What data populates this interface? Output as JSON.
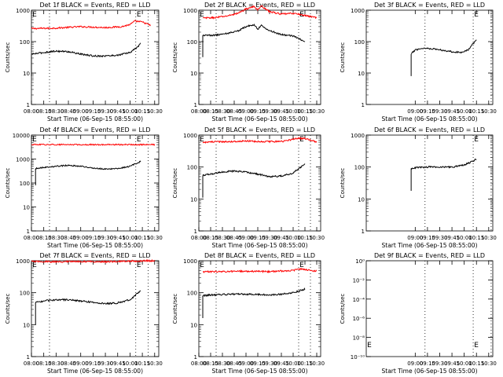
{
  "colors": {
    "events": "#000000",
    "lld": "#ff0000",
    "axes": "#000000",
    "background": "#ffffff"
  },
  "chart_data": [
    {
      "type": "line",
      "title": "Det 1f BLACK = Events, RED = LLD",
      "xlabel": "Start Time (06-Sep-15 08:55:00)",
      "ylabel": "Counts/sec",
      "xlim": [
        "08:00",
        "10:35"
      ],
      "ylim": [
        1,
        1000
      ],
      "yscale": "log",
      "x_tick_labels": [
        "08:00",
        "08:15",
        "08:30",
        "08:45",
        "09:00",
        "09:15",
        "09:30",
        "09:45",
        "10:00",
        "10:15",
        "10:30"
      ],
      "y_tick_labels": [
        "1",
        "10",
        "100",
        "1000"
      ],
      "markers": [
        "E",
        "E"
      ],
      "vlines_x": [
        "08:22",
        "10:07",
        "10:22"
      ],
      "grid": false,
      "series": [
        {
          "color": "red",
          "x": [
            "08:00",
            "08:30",
            "09:00",
            "09:30",
            "09:50",
            "10:00",
            "10:06",
            "10:15",
            "10:25"
          ],
          "y": [
            260,
            270,
            300,
            280,
            300,
            350,
            450,
            420,
            330
          ]
        },
        {
          "color": "black",
          "x": [
            "08:00",
            "08:15",
            "08:30",
            "08:45",
            "09:00",
            "09:15",
            "09:30",
            "09:45",
            "10:00",
            "10:10",
            "10:13"
          ],
          "y": [
            40,
            45,
            50,
            48,
            40,
            35,
            35,
            37,
            45,
            70,
            90
          ]
        }
      ]
    },
    {
      "type": "line",
      "title": "Det 2f BLACK = Events, RED = LLD",
      "xlabel": "Start Time (06-Sep-15 08:55:00)",
      "ylabel": "Counts/sec",
      "xlim": [
        "08:00",
        "10:35"
      ],
      "ylim": [
        1,
        1000
      ],
      "yscale": "log",
      "x_tick_labels": [
        "08:00",
        "08:15",
        "08:30",
        "08:45",
        "09:00",
        "09:15",
        "09:30",
        "09:45",
        "10:00",
        "10:15",
        "10:30"
      ],
      "y_tick_labels": [
        "1",
        "10",
        "100",
        "1000"
      ],
      "markers": [
        "E",
        "E"
      ],
      "vlines_x": [
        "08:22",
        "10:07",
        "10:22"
      ],
      "grid": false,
      "series": [
        {
          "color": "red",
          "x": [
            "08:05",
            "08:20",
            "08:35",
            "08:50",
            "09:00",
            "09:10",
            "09:15",
            "09:20",
            "09:30",
            "09:45",
            "10:00",
            "10:30"
          ],
          "y": [
            560,
            580,
            650,
            800,
            1100,
            1300,
            1050,
            1350,
            900,
            750,
            800,
            580
          ]
        },
        {
          "color": "black",
          "x": [
            "08:05",
            "08:20",
            "08:35",
            "08:50",
            "09:00",
            "09:10",
            "09:15",
            "09:20",
            "09:30",
            "09:45",
            "10:00",
            "10:15"
          ],
          "y": [
            160,
            160,
            180,
            220,
            300,
            350,
            250,
            330,
            220,
            170,
            150,
            100
          ]
        }
      ]
    },
    {
      "type": "line",
      "title": "Det 3f BLACK = Events, RED = LLD",
      "xlabel": "Start Time (06-Sep-15 08:55:00)",
      "ylabel": "Counts/sec",
      "xlim": [
        "08:00",
        "10:35"
      ],
      "ylim": [
        1,
        1000
      ],
      "yscale": "log",
      "x_tick_labels": [
        "09:00",
        "09:15",
        "09:30",
        "09:45",
        "10:00",
        "10:15",
        "10:30"
      ],
      "y_tick_labels": [
        "1",
        "10",
        "100",
        "1000"
      ],
      "markers": [
        "E"
      ],
      "vlines_x": [
        "09:12",
        "10:11",
        "10:33"
      ],
      "grid": false,
      "series": [
        {
          "color": "black",
          "x": [
            "08:55",
            "09:00",
            "09:10",
            "09:20",
            "09:30",
            "09:45",
            "09:55",
            "10:05",
            "10:13",
            "10:15"
          ],
          "y": [
            40,
            55,
            62,
            60,
            55,
            48,
            45,
            55,
            100,
            120
          ]
        }
      ]
    },
    {
      "type": "line",
      "title": "Det 4f BLACK = Events, RED = LLD",
      "xlabel": "Start Time (06-Sep-15 08:55:00)",
      "ylabel": "Counts/sec",
      "xlim": [
        "08:00",
        "10:35"
      ],
      "ylim": [
        1,
        10000
      ],
      "yscale": "log",
      "x_tick_labels": [
        "08:00",
        "08:15",
        "08:30",
        "08:45",
        "09:00",
        "09:15",
        "09:30",
        "09:45",
        "10:00",
        "10:15",
        "10:30"
      ],
      "y_tick_labels": [
        "1",
        "10",
        "100",
        "1000",
        "10000"
      ],
      "markers": [
        "E",
        "E"
      ],
      "vlines_x": [
        "08:22",
        "10:07",
        "10:22"
      ],
      "grid": false,
      "series": [
        {
          "color": "red",
          "x": [
            "08:00",
            "10:30"
          ],
          "y": [
            4000,
            4000
          ]
        },
        {
          "color": "black",
          "x": [
            "08:05",
            "08:15",
            "08:30",
            "08:45",
            "09:00",
            "09:15",
            "09:30",
            "09:45",
            "10:00",
            "10:10",
            "10:13"
          ],
          "y": [
            400,
            450,
            500,
            550,
            500,
            420,
            380,
            400,
            500,
            700,
            800
          ]
        }
      ]
    },
    {
      "type": "line",
      "title": "Det 5f BLACK = Events, RED = LLD",
      "xlabel": "Start Time (06-Sep-15 08:55:00)",
      "ylabel": "Counts/sec",
      "xlim": [
        "08:00",
        "10:35"
      ],
      "ylim": [
        1,
        1000
      ],
      "yscale": "log",
      "x_tick_labels": [
        "08:00",
        "08:15",
        "08:30",
        "08:45",
        "09:00",
        "09:15",
        "09:30",
        "09:45",
        "10:00",
        "10:15",
        "10:30"
      ],
      "y_tick_labels": [
        "1",
        "10",
        "100",
        "1000"
      ],
      "markers": [
        "E",
        "E"
      ],
      "vlines_x": [
        "08:22",
        "10:07",
        "10:22"
      ],
      "grid": false,
      "series": [
        {
          "color": "red",
          "x": [
            "08:05",
            "08:30",
            "09:00",
            "09:30",
            "09:50",
            "10:05",
            "10:15",
            "10:30"
          ],
          "y": [
            600,
            620,
            650,
            620,
            650,
            800,
            780,
            600
          ]
        },
        {
          "color": "black",
          "x": [
            "08:05",
            "08:15",
            "08:30",
            "08:45",
            "09:00",
            "09:15",
            "09:30",
            "09:45",
            "10:00",
            "10:10",
            "10:15"
          ],
          "y": [
            55,
            60,
            70,
            75,
            70,
            60,
            50,
            52,
            65,
            100,
            130
          ]
        }
      ]
    },
    {
      "type": "line",
      "title": "Det 6f BLACK = Events, RED = LLD",
      "xlabel": "Start Time (06-Sep-15 08:55:00)",
      "ylabel": "Counts/sec",
      "xlim": [
        "08:00",
        "10:35"
      ],
      "ylim": [
        1,
        1000
      ],
      "yscale": "log",
      "x_tick_labels": [
        "09:00",
        "09:15",
        "09:30",
        "09:45",
        "10:00",
        "10:15",
        "10:30"
      ],
      "y_tick_labels": [
        "1",
        "10",
        "100",
        "1000"
      ],
      "markers": [
        "E"
      ],
      "vlines_x": [
        "09:12",
        "10:11",
        "10:33"
      ],
      "grid": false,
      "series": [
        {
          "color": "black",
          "x": [
            "08:55",
            "09:00",
            "09:15",
            "09:30",
            "09:45",
            "10:00",
            "10:10",
            "10:15"
          ],
          "y": [
            90,
            95,
            100,
            100,
            100,
            115,
            150,
            180
          ]
        }
      ]
    },
    {
      "type": "line",
      "title": "Det 7f BLACK = Events, RED = LLD",
      "xlabel": "Start Time (06-Sep-15 08:55:00)",
      "ylabel": "Counts/sec",
      "xlim": [
        "08:00",
        "10:35"
      ],
      "ylim": [
        1,
        1000
      ],
      "yscale": "log",
      "x_tick_labels": [
        "08:00",
        "08:15",
        "08:30",
        "08:45",
        "09:00",
        "09:15",
        "09:30",
        "09:45",
        "10:00",
        "10:15",
        "10:30"
      ],
      "y_tick_labels": [
        "1",
        "10",
        "100",
        "1000"
      ],
      "markers": [
        "E",
        "E"
      ],
      "vlines_x": [
        "08:22",
        "10:07",
        "10:22"
      ],
      "grid": false,
      "series": [
        {
          "color": "red",
          "x": [
            "08:00",
            "08:30",
            "09:00",
            "09:30",
            "10:00",
            "10:30"
          ],
          "y": [
            950,
            930,
            950,
            930,
            980,
            1000
          ]
        },
        {
          "color": "black",
          "x": [
            "08:05",
            "08:15",
            "08:30",
            "08:45",
            "09:00",
            "09:15",
            "09:30",
            "09:45",
            "10:00",
            "10:10",
            "10:13"
          ],
          "y": [
            50,
            55,
            60,
            60,
            55,
            50,
            45,
            48,
            60,
            100,
            110
          ]
        }
      ]
    },
    {
      "type": "line",
      "title": "Det 8f BLACK = Events, RED = LLD",
      "xlabel": "Start Time (06-Sep-15 08:55:00)",
      "ylabel": "Counts/sec",
      "xlim": [
        "08:00",
        "10:35"
      ],
      "ylim": [
        1,
        1000
      ],
      "yscale": "log",
      "x_tick_labels": [
        "08:00",
        "08:15",
        "08:30",
        "08:45",
        "09:00",
        "09:15",
        "09:30",
        "09:45",
        "10:00",
        "10:15",
        "10:30"
      ],
      "y_tick_labels": [
        "1",
        "10",
        "100",
        "1000"
      ],
      "markers": [
        "E",
        "E"
      ],
      "vlines_x": [
        "08:22",
        "10:07",
        "10:22"
      ],
      "grid": false,
      "series": [
        {
          "color": "red",
          "x": [
            "08:05",
            "08:30",
            "09:00",
            "09:30",
            "10:00",
            "10:10",
            "10:30"
          ],
          "y": [
            450,
            460,
            470,
            460,
            500,
            550,
            470
          ]
        },
        {
          "color": "black",
          "x": [
            "08:05",
            "08:15",
            "08:30",
            "08:45",
            "09:00",
            "09:15",
            "09:30",
            "09:45",
            "10:00",
            "10:10",
            "10:15"
          ],
          "y": [
            80,
            85,
            88,
            90,
            90,
            88,
            85,
            90,
            100,
            120,
            130
          ]
        }
      ]
    },
    {
      "type": "line",
      "title": "Det 9f BLACK = Events, RED = LLD",
      "xlabel": "Start Time (06-Sep-15 08:55:00)",
      "ylabel": "Counts/sec",
      "xlim": [
        "08:00",
        "10:35"
      ],
      "ylim": [
        1,
        1e-10
      ],
      "yscale": "log",
      "x_tick_labels": [
        "09:00",
        "09:15",
        "09:30",
        "09:45",
        "10:00",
        "10:15",
        "10:30"
      ],
      "y_tick_labels": [
        "10⁰",
        "10⁻²",
        "10⁻⁴",
        "10⁻⁶",
        "10⁻⁸",
        "10⁻¹⁰"
      ],
      "markers": [
        "E",
        "E"
      ],
      "vlines_x": [
        "09:12",
        "10:11",
        "10:33"
      ],
      "grid": false,
      "series": []
    }
  ]
}
